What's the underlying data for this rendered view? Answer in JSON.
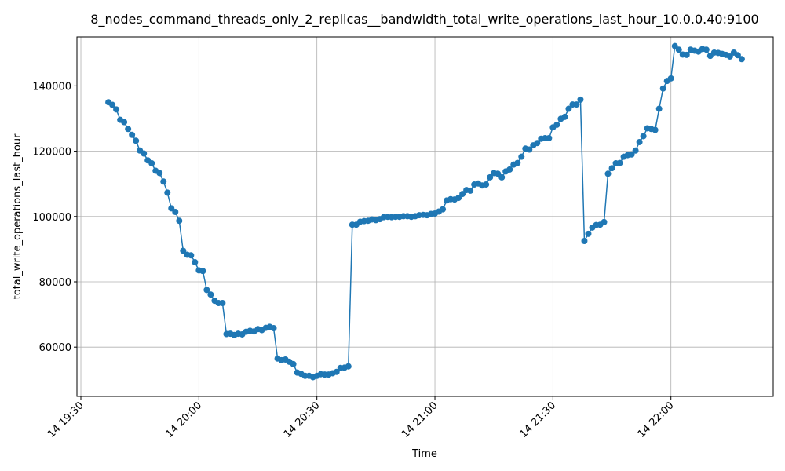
{
  "chart_data": {
    "type": "line",
    "title": "8_nodes_command_threads_only_2_replicas__bandwidth_total_write_operations_last_hour_10.0.0.40:9100",
    "x_label": "Time",
    "y_label": "total_write_operations_last_hour",
    "x": [
      "14 19:37",
      "14 19:38",
      "14 19:39",
      "14 19:40",
      "14 19:41",
      "14 19:42",
      "14 19:43",
      "14 19:44",
      "14 19:45",
      "14 19:46",
      "14 19:47",
      "14 19:48",
      "14 19:49",
      "14 19:50",
      "14 19:51",
      "14 19:52",
      "14 19:53",
      "14 19:54",
      "14 19:55",
      "14 19:56",
      "14 19:57",
      "14 19:58",
      "14 19:59",
      "14 20:00",
      "14 20:01",
      "14 20:02",
      "14 20:03",
      "14 20:04",
      "14 20:05",
      "14 20:06",
      "14 20:07",
      "14 20:08",
      "14 20:09",
      "14 20:10",
      "14 20:11",
      "14 20:12",
      "14 20:13",
      "14 20:14",
      "14 20:15",
      "14 20:16",
      "14 20:17",
      "14 20:18",
      "14 20:19",
      "14 20:20",
      "14 20:21",
      "14 20:22",
      "14 20:23",
      "14 20:24",
      "14 20:25",
      "14 20:26",
      "14 20:27",
      "14 20:28",
      "14 20:29",
      "14 20:30",
      "14 20:31",
      "14 20:32",
      "14 20:33",
      "14 20:34",
      "14 20:35",
      "14 20:36",
      "14 20:37",
      "14 20:38",
      "14 20:39",
      "14 20:40",
      "14 20:41",
      "14 20:42",
      "14 20:43",
      "14 20:44",
      "14 20:45",
      "14 20:46",
      "14 20:47",
      "14 20:48",
      "14 20:49",
      "14 20:50",
      "14 20:51",
      "14 20:52",
      "14 20:53",
      "14 20:54",
      "14 20:55",
      "14 20:56",
      "14 20:57",
      "14 20:58",
      "14 20:59",
      "14 21:00",
      "14 21:01",
      "14 21:02",
      "14 21:03",
      "14 21:04",
      "14 21:05",
      "14 21:06",
      "14 21:07",
      "14 21:08",
      "14 21:09",
      "14 21:10",
      "14 21:11",
      "14 21:12",
      "14 21:13",
      "14 21:14",
      "14 21:15",
      "14 21:16",
      "14 21:17",
      "14 21:18",
      "14 21:19",
      "14 21:20",
      "14 21:21",
      "14 21:22",
      "14 21:23",
      "14 21:24",
      "14 21:25",
      "14 21:26",
      "14 21:27",
      "14 21:28",
      "14 21:29",
      "14 21:30",
      "14 21:31",
      "14 21:32",
      "14 21:33",
      "14 21:34",
      "14 21:35",
      "14 21:36",
      "14 21:37",
      "14 21:38",
      "14 21:39",
      "14 21:40",
      "14 21:41",
      "14 21:42",
      "14 21:43",
      "14 21:44",
      "14 21:45",
      "14 21:46",
      "14 21:47",
      "14 21:48",
      "14 21:49",
      "14 21:50",
      "14 21:51",
      "14 21:52",
      "14 21:53",
      "14 21:54",
      "14 21:55",
      "14 21:56",
      "14 21:57",
      "14 21:58",
      "14 21:59",
      "14 22:00",
      "14 22:01",
      "14 22:02",
      "14 22:03",
      "14 22:04",
      "14 22:05",
      "14 22:06",
      "14 22:07",
      "14 22:08",
      "14 22:09",
      "14 22:10",
      "14 22:11",
      "14 22:12",
      "14 22:13",
      "14 22:14",
      "14 22:15",
      "14 22:16",
      "14 22:17",
      "14 22:18"
    ],
    "series": [
      {
        "name": "total_write_operations_last_hour",
        "color": "#1f77b4",
        "values": [
          135000,
          134200,
          132800,
          129600,
          128900,
          126800,
          125000,
          123200,
          120200,
          119300,
          117200,
          116300,
          114000,
          113300,
          110700,
          107300,
          102500,
          101400,
          98700,
          89500,
          88300,
          88100,
          86000,
          83500,
          83300,
          77500,
          76100,
          74200,
          73500,
          73500,
          64000,
          64100,
          63700,
          64100,
          63900,
          64700,
          65000,
          64800,
          65500,
          65200,
          65900,
          66200,
          65800,
          56500,
          56000,
          56200,
          55500,
          54800,
          52200,
          51800,
          51200,
          51200,
          50800,
          51200,
          51700,
          51600,
          51600,
          52000,
          52400,
          53600,
          53700,
          54100,
          97500,
          97500,
          98400,
          98600,
          98700,
          99100,
          98900,
          99200,
          99800,
          99900,
          99800,
          99900,
          99900,
          100100,
          100100,
          99900,
          100100,
          100400,
          100500,
          100400,
          100800,
          100900,
          101500,
          102200,
          104900,
          105300,
          105200,
          105700,
          106900,
          108100,
          107900,
          109800,
          110100,
          109500,
          109800,
          112000,
          113300,
          113100,
          112000,
          113800,
          114400,
          115900,
          116400,
          118300,
          120800,
          120500,
          121800,
          122500,
          123800,
          124000,
          124000,
          127300,
          128100,
          129900,
          130500,
          133000,
          134300,
          134300,
          135800,
          92500,
          94700,
          96600,
          97400,
          97500,
          98300,
          113100,
          114800,
          116300,
          116400,
          118300,
          118800,
          119000,
          120200,
          122800,
          124600,
          127000,
          126800,
          126500,
          133000,
          139200,
          141500,
          142300,
          152200,
          151100,
          149600,
          149500,
          151100,
          150800,
          150500,
          151300,
          151100,
          149200,
          150200,
          150100,
          149800,
          149500,
          149000,
          150200,
          149400,
          148200
        ]
      }
    ],
    "xlim": [
      "14 19:29",
      "14 22:26"
    ],
    "xticks": [
      "14 19:30",
      "14 20:00",
      "14 20:30",
      "14 21:00",
      "14 21:30",
      "14 22:00"
    ],
    "ylim": [
      44900,
      155000
    ],
    "yticks": [
      60000,
      80000,
      100000,
      120000,
      140000
    ],
    "grid": true
  }
}
